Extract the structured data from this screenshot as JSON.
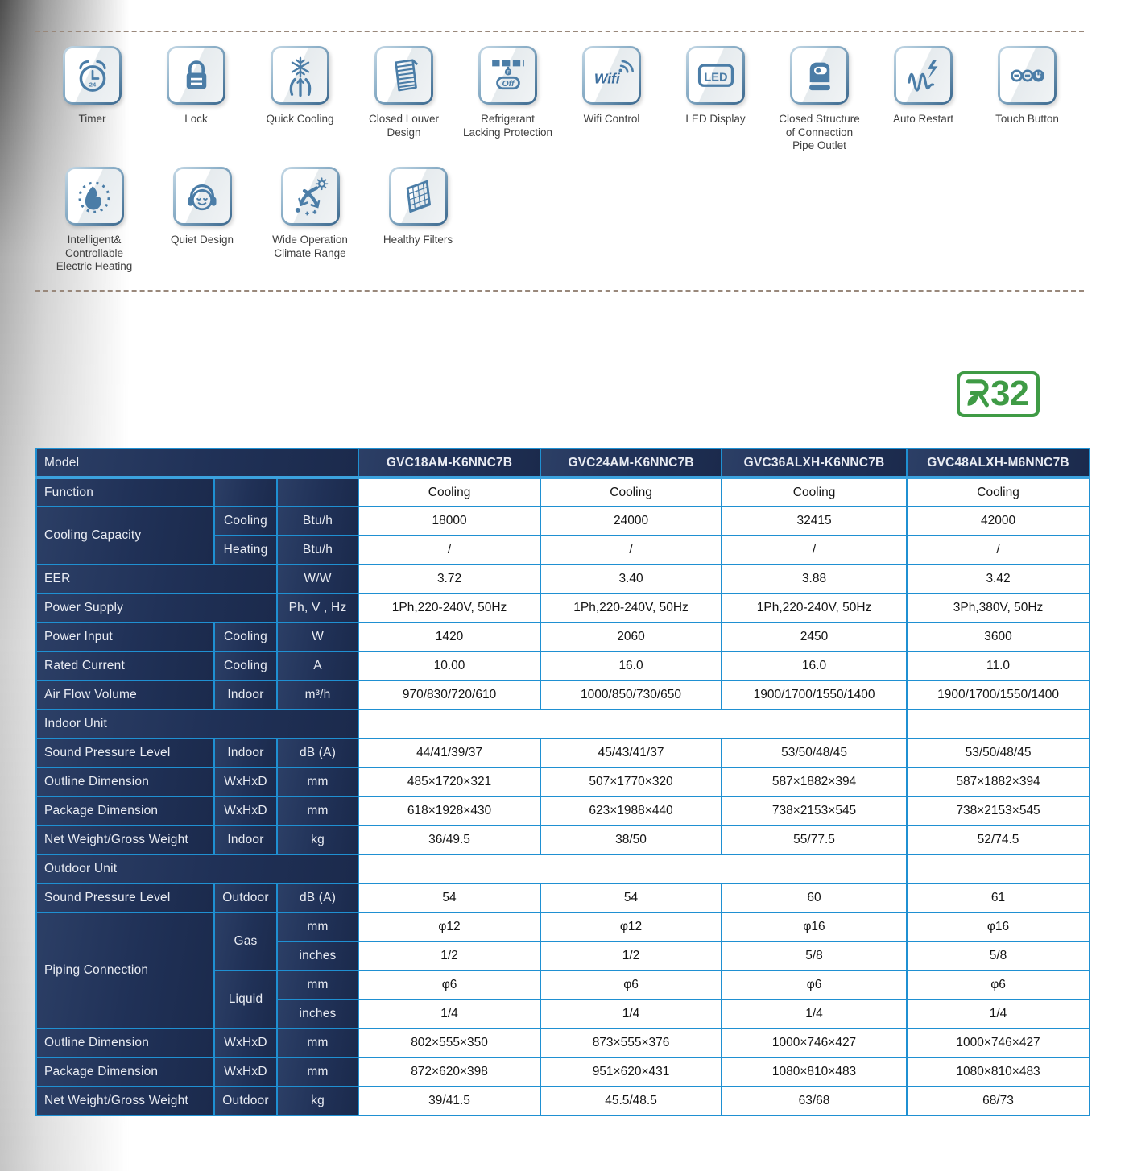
{
  "colors": {
    "table_border": "#1f90d2",
    "header_navy": "#1f2f52",
    "header_text": "#e9ecf3",
    "cell_text": "#141414",
    "badge_green": "#3f9b45",
    "icon_blue": "#4b7da7",
    "dashed_line": "#99887b"
  },
  "features": {
    "rows": [
      [
        {
          "icon": "timer-icon",
          "label": "Timer"
        },
        {
          "icon": "lock-icon",
          "label": "Lock"
        },
        {
          "icon": "quick-cooling-icon",
          "label": "Quick Cooling"
        },
        {
          "icon": "closed-louver-icon",
          "label": "Closed Louver Design"
        },
        {
          "icon": "refrigerant-lacking-icon",
          "label": "Refrigerant Lacking Protection"
        },
        {
          "icon": "wifi-control-icon",
          "label": "Wifi Control"
        },
        {
          "icon": "led-display-icon",
          "label": "LED Display"
        },
        {
          "icon": "closed-structure-icon",
          "label": "Closed Structure of Connection Pipe Outlet"
        },
        {
          "icon": "auto-restart-icon",
          "label": "Auto Restart"
        },
        {
          "icon": "touch-button-icon",
          "label": "Touch Button"
        }
      ],
      [
        {
          "icon": "electric-heating-icon",
          "label": "Intelligent& Controllable Electric Heating"
        },
        {
          "icon": "quiet-design-icon",
          "label": "Quiet Design"
        },
        {
          "icon": "wide-climate-icon",
          "label": "Wide Operation Climate Range"
        },
        {
          "icon": "healthy-filters-icon",
          "label": "Healthy Filters"
        }
      ]
    ]
  },
  "refrigerant_badge": {
    "label": "R32",
    "number": "32"
  },
  "spec_table": {
    "corner_label": "Model",
    "models": [
      "GVC18AM-K6NNC7B",
      "GVC24AM-K6NNC7B",
      "GVC36ALXH-K6NNC7B",
      "GVC48ALXH-M6NNC7B"
    ],
    "rows": [
      {
        "label": "Function",
        "sub": "",
        "unit": "",
        "values": [
          "Cooling",
          "Cooling",
          "Cooling",
          "Cooling"
        ]
      },
      {
        "label": "Cooling Capacity",
        "label_rowspan": 2,
        "sub": "Cooling",
        "unit": "Btu/h",
        "values": [
          "18000",
          "24000",
          "32415",
          "42000"
        ]
      },
      {
        "skip_label": true,
        "sub": "Heating",
        "unit": "Btu/h",
        "values": [
          "/",
          "/",
          "/",
          "/"
        ]
      },
      {
        "label": "EER",
        "label_colspan": 2,
        "unit": "W/W",
        "values": [
          "3.72",
          "3.40",
          "3.88",
          "3.42"
        ]
      },
      {
        "label": "Power Supply",
        "label_colspan": 2,
        "unit": "Ph, V , Hz",
        "values": [
          "1Ph,220-240V, 50Hz",
          "1Ph,220-240V, 50Hz",
          "1Ph,220-240V, 50Hz",
          "3Ph,380V, 50Hz"
        ]
      },
      {
        "label": "Power Input",
        "sub": "Cooling",
        "unit": "W",
        "values": [
          "1420",
          "2060",
          "2450",
          "3600"
        ]
      },
      {
        "label": "Rated Current",
        "sub": "Cooling",
        "unit": "A",
        "values": [
          "10.00",
          "16.0",
          "16.0",
          "11.0"
        ]
      },
      {
        "label": "Air Flow Volume",
        "sub": "Indoor",
        "unit": "m³/h",
        "values": [
          "970/830/720/610",
          "1000/850/730/650",
          "1900/1700/1550/1400",
          "1900/1700/1550/1400"
        ]
      },
      {
        "section": "Indoor Unit"
      },
      {
        "label": "Sound Pressure Level",
        "sub": "Indoor",
        "unit": "dB (A)",
        "values": [
          "44/41/39/37",
          "45/43/41/37",
          "53/50/48/45",
          "53/50/48/45"
        ]
      },
      {
        "label": "Outline Dimension",
        "sub": "WxHxD",
        "unit": "mm",
        "values": [
          "485×1720×321",
          "507×1770×320",
          "587×1882×394",
          "587×1882×394"
        ]
      },
      {
        "label": "Package Dimension",
        "sub": "WxHxD",
        "unit": "mm",
        "values": [
          "618×1928×430",
          "623×1988×440",
          "738×2153×545",
          "738×2153×545"
        ]
      },
      {
        "label": "Net Weight/Gross Weight",
        "sub": "Indoor",
        "unit": "kg",
        "values": [
          "36/49.5",
          "38/50",
          "55/77.5",
          "52/74.5"
        ]
      },
      {
        "section": "Outdoor Unit"
      },
      {
        "label": "Sound Pressure Level",
        "sub": "Outdoor",
        "unit": "dB (A)",
        "values": [
          "54",
          "54",
          "60",
          "61"
        ]
      },
      {
        "label": "Piping Connection",
        "label_rowspan": 4,
        "sub": "Gas",
        "sub_rowspan": 2,
        "unit": "mm",
        "values": [
          "φ12",
          "φ12",
          "φ16",
          "φ16"
        ]
      },
      {
        "skip_label": true,
        "skip_sub": true,
        "unit": "inches",
        "values": [
          "1/2",
          "1/2",
          "5/8",
          "5/8"
        ]
      },
      {
        "skip_label": true,
        "sub": "Liquid",
        "sub_rowspan": 2,
        "unit": "mm",
        "values": [
          "φ6",
          "φ6",
          "φ6",
          "φ6"
        ]
      },
      {
        "skip_label": true,
        "skip_sub": true,
        "unit": "inches",
        "values": [
          "1/4",
          "1/4",
          "1/4",
          "1/4"
        ]
      },
      {
        "label": "Outline Dimension",
        "sub": "WxHxD",
        "unit": "mm",
        "values": [
          "802×555×350",
          "873×555×376",
          "1000×746×427",
          "1000×746×427"
        ]
      },
      {
        "label": "Package Dimension",
        "sub": "WxHxD",
        "unit": "mm",
        "values": [
          "872×620×398",
          "951×620×431",
          "1080×810×483",
          "1080×810×483"
        ]
      },
      {
        "label": "Net Weight/Gross Weight",
        "sub": "Outdoor",
        "unit": "kg",
        "values": [
          "39/41.5",
          "45.5/48.5",
          "63/68",
          "68/73"
        ]
      }
    ]
  }
}
